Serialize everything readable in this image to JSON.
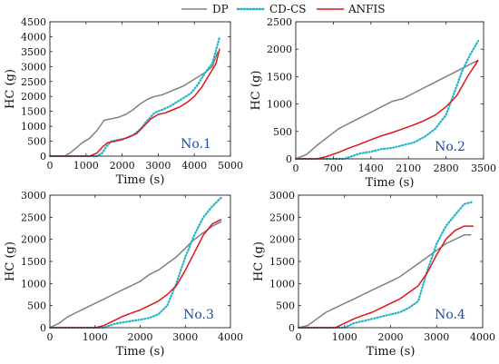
{
  "legend": [
    {
      "label": "DP",
      "color": "#808080",
      "style": "solid"
    },
    {
      "label": "CD-CS",
      "color": "#1fb5c4",
      "style": "dotted"
    },
    {
      "label": "ANFIS",
      "color": "#e0141a",
      "style": "solid"
    }
  ],
  "chart_data": [
    {
      "type": "line",
      "tag": "No.1",
      "xlabel": "Time (s)",
      "ylabel": "HC (g)",
      "xlim": [
        0,
        5000
      ],
      "ylim": [
        0,
        4500
      ],
      "xticks": [
        0,
        1000,
        2000,
        3000,
        4000,
        5000
      ],
      "yticks": [
        0,
        500,
        1000,
        1500,
        2000,
        2500,
        3000,
        3500,
        4000,
        4500
      ],
      "series": [
        {
          "name": "DP",
          "x": [
            0,
            400,
            550,
            700,
            900,
            1100,
            1300,
            1500,
            1700,
            1900,
            2100,
            2300,
            2500,
            2700,
            2900,
            3100,
            3300,
            3500,
            3700,
            3900,
            4100,
            4300,
            4500,
            4650
          ],
          "y": [
            0,
            0,
            100,
            250,
            450,
            600,
            850,
            1200,
            1250,
            1300,
            1400,
            1550,
            1750,
            1900,
            2000,
            2050,
            2150,
            2250,
            2350,
            2500,
            2650,
            2800,
            3000,
            3500
          ]
        },
        {
          "name": "CD-CS",
          "x": [
            0,
            1300,
            1450,
            1550,
            1700,
            1900,
            2100,
            2300,
            2500,
            2700,
            2900,
            3100,
            3300,
            3500,
            3700,
            3900,
            4100,
            4300,
            4500,
            4700
          ],
          "y": [
            0,
            0,
            100,
            300,
            500,
            550,
            600,
            700,
            900,
            1200,
            1450,
            1550,
            1650,
            1800,
            1950,
            2100,
            2400,
            2800,
            3100,
            4000
          ]
        },
        {
          "name": "ANFIS",
          "x": [
            0,
            1100,
            1300,
            1450,
            1600,
            1800,
            2000,
            2200,
            2400,
            2600,
            2800,
            3000,
            3200,
            3400,
            3600,
            3800,
            4000,
            4200,
            4400,
            4600,
            4700
          ],
          "y": [
            0,
            0,
            100,
            300,
            450,
            500,
            550,
            650,
            750,
            1000,
            1250,
            1400,
            1450,
            1550,
            1650,
            1800,
            2000,
            2300,
            2700,
            3100,
            3600
          ]
        }
      ]
    },
    {
      "type": "line",
      "tag": "No.2",
      "xlabel": "Time (s)",
      "ylabel": "HC (g)",
      "xlim": [
        0,
        3500
      ],
      "ylim": [
        0,
        2500
      ],
      "xticks": [
        0,
        700,
        1400,
        2100,
        2800,
        3500
      ],
      "yticks": [
        0,
        500,
        1000,
        1500,
        2000,
        2500
      ],
      "series": [
        {
          "name": "DP",
          "x": [
            0,
            200,
            400,
            600,
            800,
            1000,
            1200,
            1400,
            1600,
            1800,
            2000,
            2200,
            2400,
            2600,
            2800,
            3000,
            3200,
            3400
          ],
          "y": [
            0,
            80,
            250,
            400,
            550,
            650,
            750,
            850,
            950,
            1050,
            1100,
            1200,
            1300,
            1400,
            1500,
            1600,
            1700,
            1800
          ]
        },
        {
          "name": "CD-CS",
          "x": [
            0,
            900,
            1050,
            1200,
            1400,
            1600,
            1800,
            2000,
            2200,
            2400,
            2600,
            2800,
            2950,
            3100,
            3250,
            3400
          ],
          "y": [
            0,
            0,
            50,
            100,
            130,
            180,
            200,
            250,
            300,
            400,
            550,
            800,
            1200,
            1600,
            1900,
            2150
          ]
        },
        {
          "name": "ANFIS",
          "x": [
            0,
            400,
            600,
            800,
            1000,
            1200,
            1400,
            1600,
            1800,
            2000,
            2200,
            2400,
            2600,
            2800,
            3000,
            3200,
            3400
          ],
          "y": [
            0,
            0,
            50,
            120,
            200,
            270,
            350,
            420,
            480,
            550,
            620,
            700,
            800,
            950,
            1150,
            1500,
            1800
          ]
        }
      ]
    },
    {
      "type": "line",
      "tag": "No.3",
      "xlabel": "Time (s)",
      "ylabel": "HC (g)",
      "xlim": [
        0,
        4000
      ],
      "ylim": [
        0,
        3000
      ],
      "xticks": [
        0,
        1000,
        2000,
        3000,
        4000
      ],
      "yticks": [
        0,
        500,
        1000,
        1500,
        2000,
        2500,
        3000
      ],
      "series": [
        {
          "name": "DP",
          "x": [
            0,
            200,
            400,
            600,
            800,
            1000,
            1200,
            1400,
            1600,
            1800,
            2000,
            2200,
            2400,
            2600,
            2800,
            3000,
            3200,
            3400,
            3600,
            3800
          ],
          "y": [
            0,
            100,
            250,
            350,
            450,
            550,
            650,
            750,
            850,
            950,
            1050,
            1200,
            1300,
            1450,
            1600,
            1800,
            2000,
            2150,
            2300,
            2400
          ]
        },
        {
          "name": "CD-CS",
          "x": [
            0,
            1200,
            1400,
            1600,
            1800,
            2000,
            2200,
            2400,
            2600,
            2800,
            3000,
            3200,
            3400,
            3600,
            3800
          ],
          "y": [
            0,
            0,
            80,
            120,
            150,
            180,
            220,
            300,
            500,
            1000,
            1600,
            2100,
            2500,
            2750,
            2950
          ]
        },
        {
          "name": "ANFIS",
          "x": [
            0,
            1000,
            1200,
            1400,
            1600,
            1800,
            2000,
            2200,
            2400,
            2600,
            2800,
            3000,
            3200,
            3400,
            3600,
            3800
          ],
          "y": [
            0,
            0,
            50,
            150,
            250,
            330,
            400,
            500,
            600,
            750,
            950,
            1300,
            1700,
            2100,
            2350,
            2450
          ]
        }
      ]
    },
    {
      "type": "line",
      "tag": "No.4",
      "xlabel": "Time (s)",
      "ylabel": "HC (g)",
      "xlim": [
        0,
        4000
      ],
      "ylim": [
        0,
        3000
      ],
      "xticks": [
        0,
        1000,
        2000,
        3000,
        4000
      ],
      "yticks": [
        0,
        500,
        1000,
        1500,
        2000,
        2500,
        3000
      ],
      "series": [
        {
          "name": "DP",
          "x": [
            0,
            200,
            400,
            600,
            800,
            1000,
            1200,
            1400,
            1600,
            1800,
            2000,
            2200,
            2400,
            2600,
            2800,
            3000,
            3200,
            3400,
            3600,
            3750
          ],
          "y": [
            0,
            50,
            200,
            350,
            450,
            550,
            650,
            750,
            850,
            950,
            1050,
            1150,
            1300,
            1450,
            1600,
            1750,
            1900,
            2000,
            2100,
            2100
          ]
        },
        {
          "name": "CD-CS",
          "x": [
            0,
            1000,
            1200,
            1400,
            1600,
            1800,
            2000,
            2200,
            2400,
            2600,
            2800,
            3000,
            3200,
            3400,
            3600,
            3800
          ],
          "y": [
            0,
            0,
            100,
            150,
            200,
            250,
            300,
            350,
            450,
            600,
            1300,
            1900,
            2300,
            2550,
            2800,
            2850
          ]
        },
        {
          "name": "ANFIS",
          "x": [
            0,
            800,
            1000,
            1200,
            1400,
            1600,
            1800,
            2000,
            2200,
            2400,
            2600,
            2800,
            3000,
            3200,
            3400,
            3600,
            3800
          ],
          "y": [
            0,
            0,
            100,
            200,
            280,
            350,
            450,
            550,
            650,
            800,
            950,
            1250,
            1650,
            2000,
            2200,
            2300,
            2300
          ]
        }
      ]
    }
  ]
}
